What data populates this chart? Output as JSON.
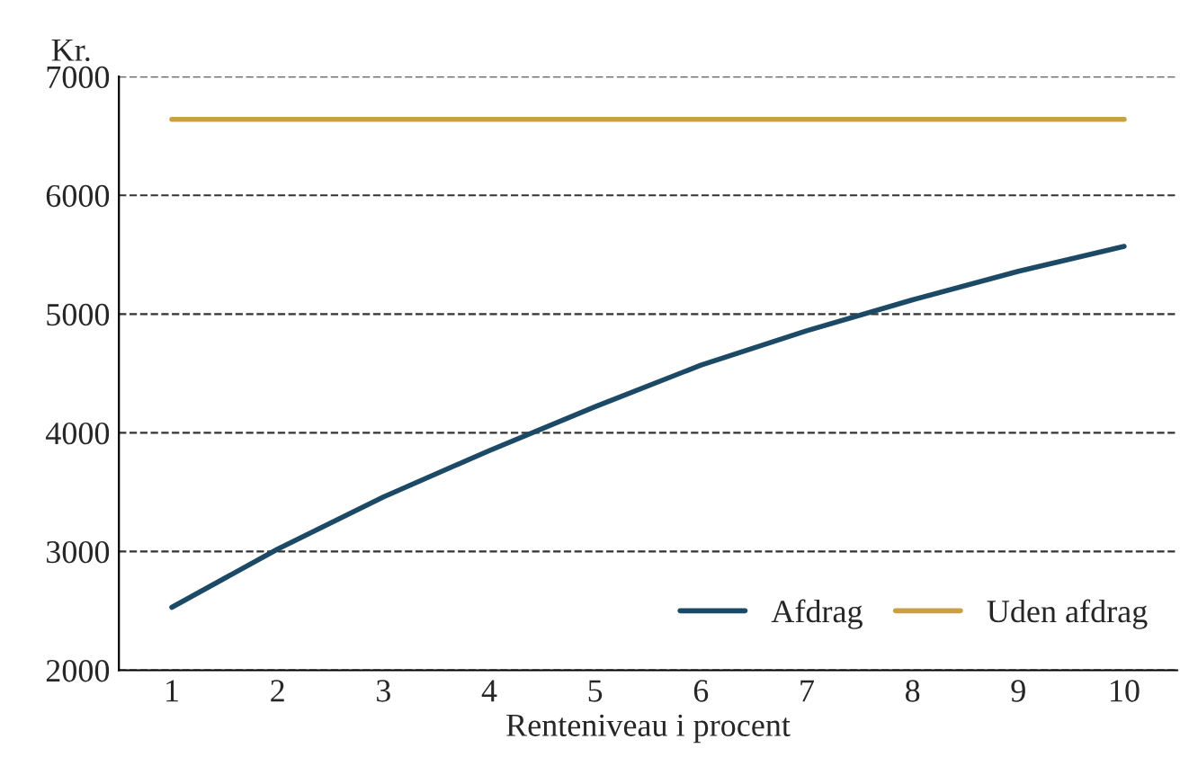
{
  "chart_data": {
    "type": "line",
    "xlabel": "Renteniveau i procent",
    "ylabel": "Kr.",
    "categories": [
      "1",
      "2",
      "3",
      "4",
      "5",
      "6",
      "7",
      "8",
      "9",
      "10"
    ],
    "series": [
      {
        "name": "Afdrag",
        "color": "#1c4a66",
        "values": [
          2530,
          3020,
          3460,
          3850,
          4220,
          4570,
          4860,
          5120,
          5360,
          5570
        ]
      },
      {
        "name": "Uden afdrag",
        "color": "#c9a043",
        "values": [
          6640,
          6640,
          6640,
          6640,
          6640,
          6640,
          6640,
          6640,
          6640,
          6640
        ]
      }
    ],
    "ylim": [
      2000,
      7000
    ],
    "yticks": [
      2000,
      3000,
      4000,
      5000,
      6000,
      7000
    ],
    "grid": "y",
    "legend": "bottom right",
    "marker": "none",
    "line_style": "solid"
  }
}
